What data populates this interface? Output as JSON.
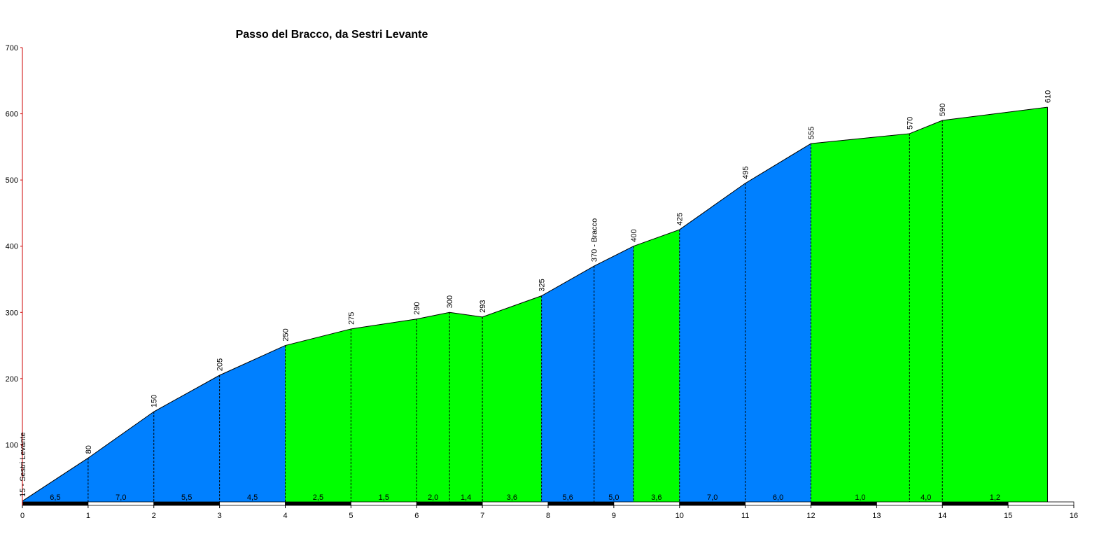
{
  "chart_data": {
    "type": "area",
    "title": "Passo del Bracco, da Sestri Levante",
    "xlim": [
      0,
      16
    ],
    "ylim": [
      0,
      700
    ],
    "x_ticks": [
      "0",
      "1",
      "2",
      "3",
      "4",
      "5",
      "6",
      "7",
      "8",
      "9",
      "10",
      "11",
      "12",
      "13",
      "14",
      "15",
      "16"
    ],
    "y_ticks": [
      "100",
      "200",
      "300",
      "400",
      "500",
      "600",
      "700"
    ],
    "x": [
      0,
      1,
      2,
      3,
      4,
      5,
      6,
      6.5,
      7,
      7.9,
      8.7,
      9.3,
      10,
      11,
      12,
      13.5,
      14,
      15.6
    ],
    "y": [
      15,
      80,
      150,
      205,
      250,
      275,
      290,
      300,
      293,
      325,
      370,
      400,
      425,
      495,
      555,
      570,
      590,
      610
    ],
    "point_labels": [
      "15 - Sestri Levante",
      "80",
      "150",
      "205",
      "250",
      "275",
      "290",
      "300",
      "293",
      "325",
      "370 - Bracco",
      "400",
      "425",
      "495",
      "555",
      "570",
      "590",
      "610"
    ],
    "segments": [
      {
        "from": 0,
        "to": 4,
        "color": "#0080ff",
        "grades": [
          {
            "x0": 0,
            "x1": 1,
            "label": "6,5"
          },
          {
            "x0": 1,
            "x1": 2,
            "label": "7,0"
          },
          {
            "x0": 2,
            "x1": 3,
            "label": "5,5"
          },
          {
            "x0": 3,
            "x1": 4,
            "label": "4,5"
          }
        ]
      },
      {
        "from": 4,
        "to": 7.9,
        "color": "#00ff00",
        "grades": [
          {
            "x0": 4,
            "x1": 5,
            "label": "2,5"
          },
          {
            "x0": 5,
            "x1": 6,
            "label": "1,5"
          },
          {
            "x0": 6,
            "x1": 6.5,
            "label": "2,0"
          },
          {
            "x0": 6.5,
            "x1": 7,
            "label": "1,4"
          },
          {
            "x0": 7,
            "x1": 7.9,
            "label": "3,6"
          }
        ]
      },
      {
        "from": 7.9,
        "to": 9.3,
        "color": "#0080ff",
        "grades": [
          {
            "x0": 7.9,
            "x1": 8.7,
            "label": "5,6"
          },
          {
            "x0": 8.7,
            "x1": 9.3,
            "label": "5,0"
          }
        ]
      },
      {
        "from": 9.3,
        "to": 10,
        "color": "#00ff00",
        "grades": [
          {
            "x0": 9.3,
            "x1": 10,
            "label": "3,6"
          }
        ]
      },
      {
        "from": 10,
        "to": 12,
        "color": "#0080ff",
        "grades": [
          {
            "x0": 10,
            "x1": 11,
            "label": "7,0"
          },
          {
            "x0": 11,
            "x1": 12,
            "label": "6,0"
          }
        ]
      },
      {
        "from": 12,
        "to": 15.6,
        "color": "#00ff00",
        "grades": [
          {
            "x0": 12,
            "x1": 13.5,
            "label": "1,0"
          },
          {
            "x0": 13.5,
            "x1": 14,
            "label": "4,0"
          },
          {
            "x0": 14,
            "x1": 15.6,
            "label": "1,2"
          }
        ]
      }
    ],
    "colors": {
      "steep": "#0080ff",
      "gentle": "#00ff00",
      "axis": "#cc0000",
      "ruler_dark": "#000000",
      "ruler_light": "#ffffff"
    },
    "grid": false,
    "xlabel": "",
    "ylabel": ""
  }
}
